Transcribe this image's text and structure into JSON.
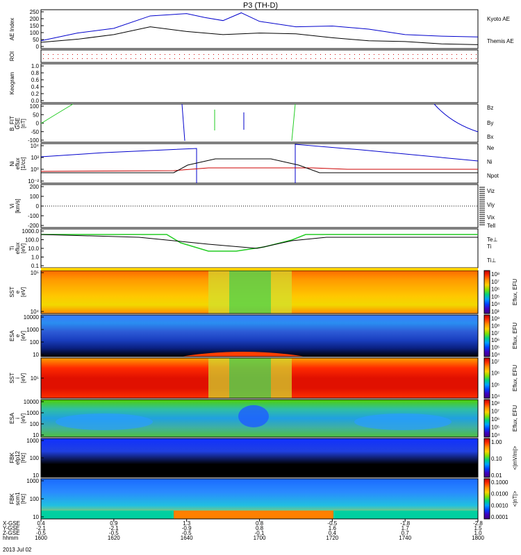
{
  "title": "P3 (TH-D)",
  "date": "2013 Jul 02",
  "colors": {
    "blue": "#0000cc",
    "red": "#cc0000",
    "green": "#22cc22",
    "black": "#000000"
  },
  "panels": {
    "ae": {
      "ylabel": "AE Index",
      "yticks": [
        "250",
        "200",
        "150",
        "100",
        "50",
        "0"
      ],
      "legend": [
        "Kyoto AE",
        "Themis AE"
      ]
    },
    "roi": {
      "ylabel": "ROI"
    },
    "keogram": {
      "ylabel": "Keogram",
      "yticks": [
        "1.0",
        "0.8",
        "0.6",
        "0.4",
        "0.2",
        "0.0"
      ]
    },
    "bfit": {
      "ylabel": [
        "B_FIT",
        "GSE",
        "[nT]"
      ],
      "yticks": [
        "100",
        "50",
        "0",
        "-50",
        "-100"
      ],
      "legend": [
        "Bz",
        "By",
        "Bx"
      ]
    },
    "ni": {
      "ylabel": [
        "Ni",
        "eflux",
        "[1/cc]"
      ],
      "yticks": [
        "10⁴",
        "10²",
        "10⁰",
        "10⁻²"
      ],
      "legend": [
        "Ne",
        "Ni",
        "Npot"
      ]
    },
    "vi": {
      "ylabel": [
        "Vi",
        "[km/s]"
      ],
      "yticks": [
        "200",
        "100",
        "0",
        "-100",
        "-200"
      ],
      "legend": [
        "Viz",
        "Viy",
        "Vix"
      ]
    },
    "ti": {
      "ylabel": [
        "Ti",
        "eflux",
        "[eV]"
      ],
      "yticks": [
        "1000.0",
        "100.0",
        "10.0",
        "1.0",
        "0.1"
      ],
      "legend": [
        "Tell",
        "Te⊥",
        "Ti",
        "Ti⊥"
      ]
    },
    "sst_e": {
      "ylabel": [
        "SST",
        "e",
        "[eV]"
      ],
      "yticks": [
        "10⁵",
        "10⁴"
      ],
      "cbar": [
        "10⁸",
        "10⁷",
        "10⁶",
        "10⁵",
        "10⁴",
        "10³"
      ],
      "cbar_label": "Eflux, EFU"
    },
    "esa_e": {
      "ylabel": [
        "ESA",
        "e",
        "[eV]"
      ],
      "yticks": [
        "10000",
        "1000",
        "100",
        "10"
      ],
      "cbar": [
        "10⁹",
        "10⁸",
        "10⁷",
        "10⁶",
        "10⁵",
        "10⁴"
      ],
      "cbar_label": "Eflux, EFU"
    },
    "sst_i": {
      "ylabel": [
        "SST",
        "i",
        "[eV]"
      ],
      "yticks": [
        "10⁵"
      ],
      "cbar": [
        "10⁷",
        "10⁶",
        "10⁵",
        "10⁴"
      ],
      "cbar_label": "Eflux, EFU"
    },
    "esa_i": {
      "ylabel": [
        "ESA",
        "i",
        "[eV]"
      ],
      "yticks": [
        "10000",
        "1000",
        "100",
        "10"
      ],
      "cbar": [
        "10⁸",
        "10⁷",
        "10⁶",
        "10⁵",
        "10⁴"
      ],
      "cbar_label": "Eflux, EFU"
    },
    "fbk_e": {
      "ylabel": [
        "FBK",
        "efp12",
        "[Hz]"
      ],
      "yticks": [
        "1000",
        "100",
        "10"
      ],
      "cbar": [
        "1.00",
        "0.10",
        "0.01"
      ],
      "cbar_label": "<|mV/m|>"
    },
    "fbk_b": {
      "ylabel": [
        "FBK",
        "scm1",
        "[Hz]"
      ],
      "yticks": [
        "1000",
        "100",
        "10"
      ],
      "cbar": [
        "0.1000",
        "0.0100",
        "0.0010",
        "0.0001"
      ],
      "cbar_label": "<|nT|>"
    }
  },
  "xaxis": {
    "row_labels": [
      "X-GSE",
      "Y-GSE",
      "Z-GSE",
      "hhmm"
    ],
    "columns": [
      [
        "0.4",
        "-2.1",
        "-0.5",
        "1600"
      ],
      [
        "0.9",
        "-2.1",
        "-0.5",
        "1620"
      ],
      [
        "1.3",
        "-0.9",
        "-0.5",
        "1640"
      ],
      [
        "0.8",
        "0.8",
        "-0.1",
        "1700"
      ],
      [
        "-0.5",
        "1.6",
        "0.4",
        "1720"
      ],
      [
        "-1.8",
        "1.7",
        "0.7",
        "1740"
      ],
      [
        "-2.8",
        "1.5",
        "1.0",
        "1800"
      ]
    ]
  },
  "chart_data": {
    "type": "line",
    "title": "P3 (TH-D)",
    "xlabel": "hhmm",
    "x_range": [
      "1600",
      "1800"
    ],
    "series": [
      {
        "name": "Kyoto AE",
        "x": [
          "1600",
          "1610",
          "1620",
          "1630",
          "1640",
          "1645",
          "1650",
          "1655",
          "1700",
          "1710",
          "1720",
          "1730",
          "1740",
          "1750",
          "1800"
        ],
        "values": [
          50,
          100,
          130,
          210,
          225,
          200,
          180,
          230,
          175,
          140,
          145,
          125,
          90,
          80,
          75
        ]
      },
      {
        "name": "Themis AE",
        "x": [
          "1600",
          "1610",
          "1620",
          "1630",
          "1640",
          "1650",
          "1700",
          "1710",
          "1720",
          "1730",
          "1740",
          "1750",
          "1800"
        ],
        "values": [
          40,
          60,
          90,
          140,
          110,
          90,
          100,
          95,
          70,
          50,
          45,
          30,
          25
        ]
      }
    ],
    "ylim": [
      0,
      250
    ]
  }
}
